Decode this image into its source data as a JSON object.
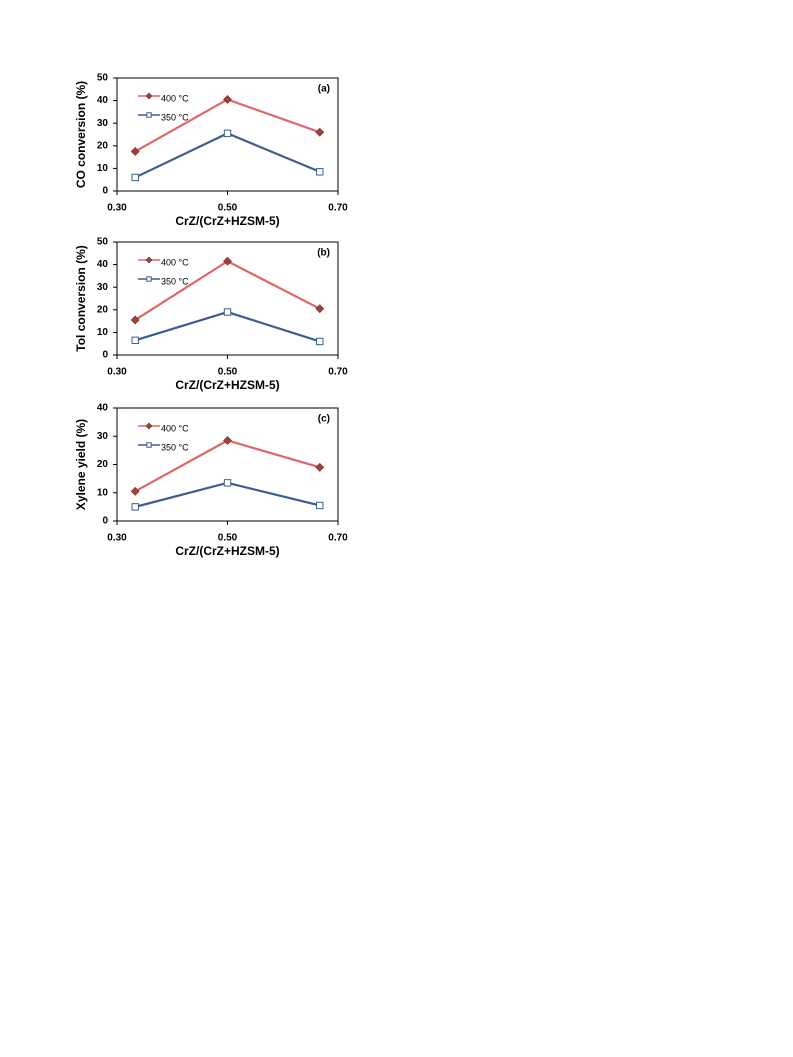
{
  "chart_data": [
    {
      "type": "line",
      "label": "(a)",
      "y_label": "CO conversion (%)",
      "x_label": "CrZ/(CrZ+HZSM-5)",
      "x": [
        0.333,
        0.5,
        0.667
      ],
      "xlim": [
        0.3,
        0.7
      ],
      "xticks": [
        {
          "value": 0.3,
          "label": "0.30"
        },
        {
          "value": 0.5,
          "label": "0.50"
        },
        {
          "value": 0.7,
          "label": "0.70"
        }
      ],
      "ylim": [
        0,
        50
      ],
      "yticks": [
        0,
        10,
        20,
        30,
        40,
        50
      ],
      "series": [
        {
          "name": "400 °C",
          "color": "#e06666",
          "marker": "diamond",
          "marker_color": "#a0403e",
          "values": [
            17.5,
            40.5,
            26
          ]
        },
        {
          "name": "350 °C",
          "color": "#3b5f8e",
          "marker": "square",
          "marker_color": "#ffffff",
          "values": [
            6,
            25.5,
            8.5
          ]
        }
      ]
    },
    {
      "type": "line",
      "label": "(b)",
      "y_label": "Tol conversion (%)",
      "x_label": "CrZ/(CrZ+HZSM-5)",
      "x": [
        0.333,
        0.5,
        0.667
      ],
      "xlim": [
        0.3,
        0.7
      ],
      "xticks": [
        {
          "value": 0.3,
          "label": "0.30"
        },
        {
          "value": 0.5,
          "label": "0.50"
        },
        {
          "value": 0.7,
          "label": "0.70"
        }
      ],
      "ylim": [
        0,
        50
      ],
      "yticks": [
        0,
        10,
        20,
        30,
        40,
        50
      ],
      "series": [
        {
          "name": "400 °C",
          "color": "#e06666",
          "marker": "diamond",
          "marker_color": "#a0403e",
          "values": [
            15.5,
            41.5,
            20.5
          ]
        },
        {
          "name": "350 °C",
          "color": "#3b5f8e",
          "marker": "square",
          "marker_color": "#ffffff",
          "values": [
            6.5,
            19,
            6
          ]
        }
      ]
    },
    {
      "type": "line",
      "label": "(c)",
      "y_label": "Xylene yield (%)",
      "x_label": "CrZ/(CrZ+HZSM-5)",
      "x": [
        0.333,
        0.5,
        0.667
      ],
      "xlim": [
        0.3,
        0.7
      ],
      "xticks": [
        {
          "value": 0.3,
          "label": "0.30"
        },
        {
          "value": 0.5,
          "label": "0.50"
        },
        {
          "value": 0.7,
          "label": "0.70"
        }
      ],
      "ylim": [
        0,
        40
      ],
      "yticks": [
        0,
        10,
        20,
        30,
        40
      ],
      "series": [
        {
          "name": "400 °C",
          "color": "#e06666",
          "marker": "diamond",
          "marker_color": "#a0403e",
          "values": [
            10.5,
            28.5,
            19
          ]
        },
        {
          "name": "350 °C",
          "color": "#3b5f8e",
          "marker": "square",
          "marker_color": "#ffffff",
          "values": [
            5,
            13.5,
            5.5
          ]
        }
      ]
    }
  ]
}
